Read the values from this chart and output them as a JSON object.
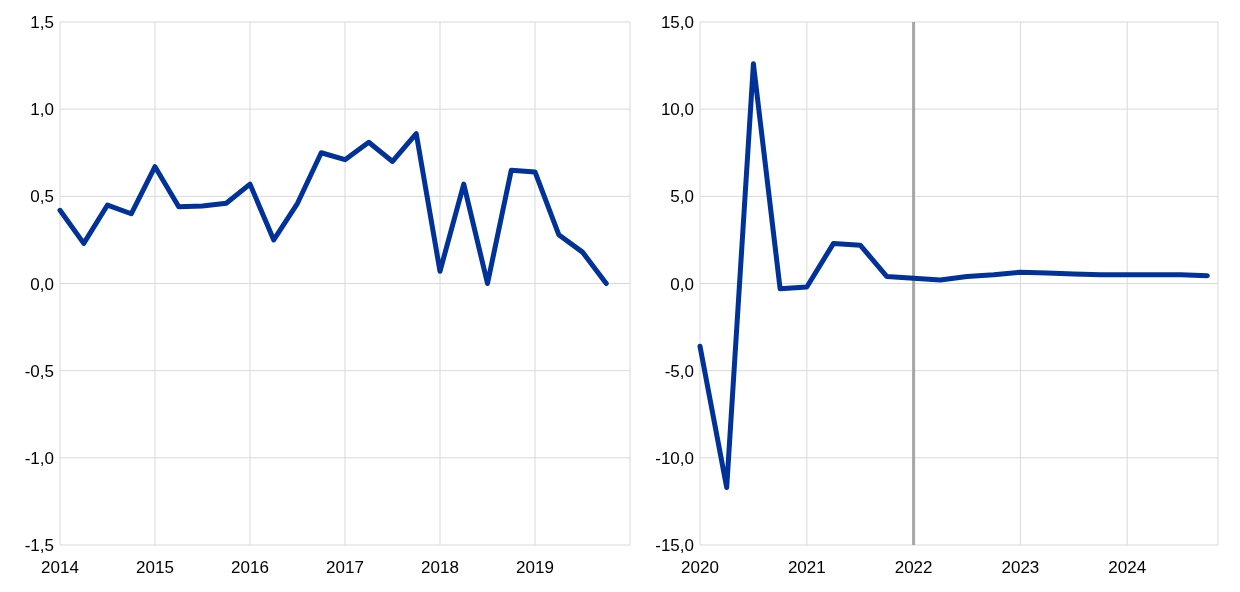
{
  "chart_data": [
    {
      "type": "line",
      "x": [
        2014,
        2014.25,
        2014.5,
        2014.75,
        2015,
        2015.25,
        2015.5,
        2015.75,
        2016,
        2016.25,
        2016.5,
        2016.75,
        2017,
        2017.25,
        2017.5,
        2017.75,
        2018,
        2018.25,
        2018.5,
        2018.75,
        2019,
        2019.25,
        2019.5,
        2019.75
      ],
      "series": [
        {
          "color": "#003299",
          "values": [
            0.42,
            0.23,
            0.45,
            0.4,
            0.67,
            0.44,
            0.445,
            0.46,
            0.57,
            0.25,
            0.46,
            0.75,
            0.71,
            0.81,
            0.7,
            0.86,
            0.07,
            0.57,
            0.0,
            0.65,
            0.64,
            0.28,
            0.18,
            0.0
          ]
        }
      ],
      "xlim": [
        2014,
        2020
      ],
      "xticks": [
        2014,
        2015,
        2016,
        2017,
        2018,
        2019
      ],
      "ylim": [
        -1.5,
        1.5
      ],
      "yticks": [
        {
          "value": -1.5,
          "label": "-1,5"
        },
        {
          "value": -1,
          "label": "-1,0"
        },
        {
          "value": -0.5,
          "label": "-0,5"
        },
        {
          "value": 0,
          "label": "0,0"
        },
        {
          "value": 0.5,
          "label": "0,5"
        },
        {
          "value": 1,
          "label": "1,0"
        },
        {
          "value": 1.5,
          "label": "1,5"
        }
      ],
      "grid": true,
      "marker": "none",
      "line_style": "solid"
    },
    {
      "type": "line",
      "x": [
        2020,
        2020.25,
        2020.5,
        2020.75,
        2021,
        2021.25,
        2021.5,
        2021.75,
        2022,
        2022.25,
        2022.5,
        2022.75,
        2023,
        2023.25,
        2023.5,
        2023.75,
        2024,
        2024.25,
        2024.5,
        2024.75
      ],
      "series": [
        {
          "color": "#003299",
          "values": [
            -3.6,
            -11.7,
            12.6,
            -0.3,
            -0.2,
            2.3,
            2.2,
            0.4,
            0.3,
            0.2,
            0.4,
            0.5,
            0.65,
            0.6,
            0.55,
            0.5,
            0.5,
            0.5,
            0.5,
            0.45
          ]
        }
      ],
      "xlim": [
        2020,
        2024.85
      ],
      "xticks": [
        2020,
        2021,
        2022,
        2023,
        2024
      ],
      "ylim": [
        -15,
        15
      ],
      "yticks": [
        {
          "value": -15,
          "label": "-15,0"
        },
        {
          "value": -10,
          "label": "-10,0"
        },
        {
          "value": -5,
          "label": "-5,0"
        },
        {
          "value": 0,
          "label": "0,0"
        },
        {
          "value": 5,
          "label": "5,0"
        },
        {
          "value": 10,
          "label": "10,0"
        },
        {
          "value": 15,
          "label": "15,0"
        }
      ],
      "ref_lines": [
        {
          "axis": "x",
          "value": 2022,
          "color": "#a6a6a6",
          "line_style": "solid"
        }
      ],
      "grid": true,
      "marker": "none",
      "line_style": "solid"
    }
  ]
}
